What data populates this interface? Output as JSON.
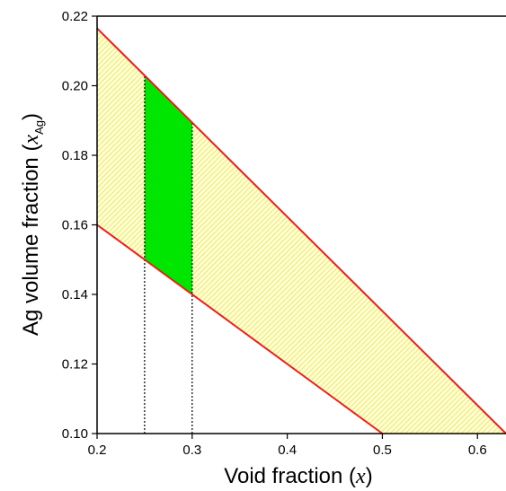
{
  "chart_data": {
    "type": "area",
    "xlabel": "Void fraction (",
    "xlabel_var": "x",
    "xlabel_close": ")",
    "ylabel": "Ag volume fraction (",
    "ylabel_var": "x",
    "ylabel_sub": "Ag",
    "ylabel_close": ")",
    "xlim": [
      0.2,
      0.63
    ],
    "ylim": [
      0.1,
      0.22
    ],
    "xticks": [
      "0.2",
      "0.3",
      "0.4",
      "0.5",
      "0.6"
    ],
    "xtick_values": [
      0.2,
      0.3,
      0.4,
      0.5,
      0.6
    ],
    "yticks": [
      "0.10",
      "0.12",
      "0.14",
      "0.16",
      "0.18",
      "0.20",
      "0.22"
    ],
    "ytick_values": [
      0.1,
      0.12,
      0.14,
      0.16,
      0.18,
      0.2,
      0.22
    ],
    "grid": false,
    "series": [
      {
        "values": [
          [
            0.2,
            0.2165
          ],
          [
            0.63,
            0.1
          ]
        ]
      },
      {
        "values": [
          [
            0.2,
            0.16
          ],
          [
            0.5,
            0.1
          ]
        ]
      }
    ],
    "regions": [
      {
        "fill": "hatched-yellow",
        "polygon": [
          [
            0.2,
            0.2165
          ],
          [
            0.63,
            0.1
          ],
          [
            0.5,
            0.1
          ],
          [
            0.2,
            0.16
          ]
        ]
      },
      {
        "fill": "green",
        "polygon": [
          [
            0.25,
            0.2031
          ],
          [
            0.3,
            0.1896
          ],
          [
            0.3,
            0.14
          ],
          [
            0.25,
            0.15
          ]
        ]
      }
    ],
    "vlines": [
      {
        "x": 0.25,
        "from": 0.1,
        "to": 0.2031,
        "style": "dotted"
      },
      {
        "x": 0.3,
        "from": 0.1,
        "to": 0.1896,
        "style": "dotted"
      }
    ],
    "colors": {
      "line": "#e8201e",
      "hatch_bg": "#ffffd0",
      "hatch_line": "#e0d850",
      "green": "#00e600"
    }
  }
}
